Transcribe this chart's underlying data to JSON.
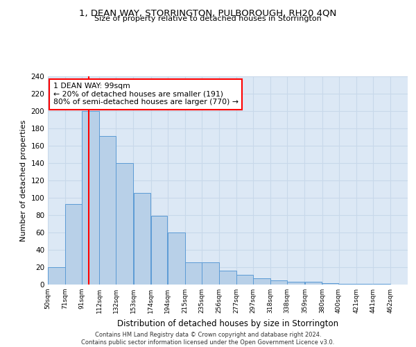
{
  "title1": "1, DEAN WAY, STORRINGTON, PULBOROUGH, RH20 4QN",
  "title2": "Size of property relative to detached houses in Storrington",
  "xlabel": "Distribution of detached houses by size in Storrington",
  "ylabel": "Number of detached properties",
  "bar_left_edges": [
    50,
    71,
    91,
    112,
    132,
    153,
    174,
    194,
    215,
    235,
    256,
    277,
    297,
    318,
    338,
    359,
    380,
    400,
    421,
    441
  ],
  "bar_widths": [
    21,
    20,
    21,
    20,
    21,
    21,
    20,
    21,
    20,
    21,
    21,
    20,
    21,
    20,
    21,
    21,
    20,
    21,
    20,
    21
  ],
  "bar_heights": [
    20,
    93,
    200,
    171,
    140,
    106,
    79,
    60,
    26,
    26,
    16,
    11,
    7,
    5,
    3,
    3,
    2,
    1,
    1,
    1
  ],
  "tick_labels": [
    "50sqm",
    "71sqm",
    "91sqm",
    "112sqm",
    "132sqm",
    "153sqm",
    "174sqm",
    "194sqm",
    "215sqm",
    "235sqm",
    "256sqm",
    "277sqm",
    "297sqm",
    "318sqm",
    "338sqm",
    "359sqm",
    "380sqm",
    "400sqm",
    "421sqm",
    "441sqm",
    "462sqm"
  ],
  "tick_positions": [
    50,
    71,
    91,
    112,
    132,
    153,
    174,
    194,
    215,
    235,
    256,
    277,
    297,
    318,
    338,
    359,
    380,
    400,
    421,
    441,
    462
  ],
  "bar_color": "#b8d0e8",
  "bar_edge_color": "#5b9bd5",
  "grid_color": "#c8d8ea",
  "bg_color": "#dce8f5",
  "red_line_x": 99,
  "annotation_title": "1 DEAN WAY: 99sqm",
  "annotation_line1": "← 20% of detached houses are smaller (191)",
  "annotation_line2": "80% of semi-detached houses are larger (770) →",
  "ylim": [
    0,
    240
  ],
  "yticks": [
    0,
    20,
    40,
    60,
    80,
    100,
    120,
    140,
    160,
    180,
    200,
    220,
    240
  ],
  "footer1": "Contains HM Land Registry data © Crown copyright and database right 2024.",
  "footer2": "Contains public sector information licensed under the Open Government Licence v3.0."
}
